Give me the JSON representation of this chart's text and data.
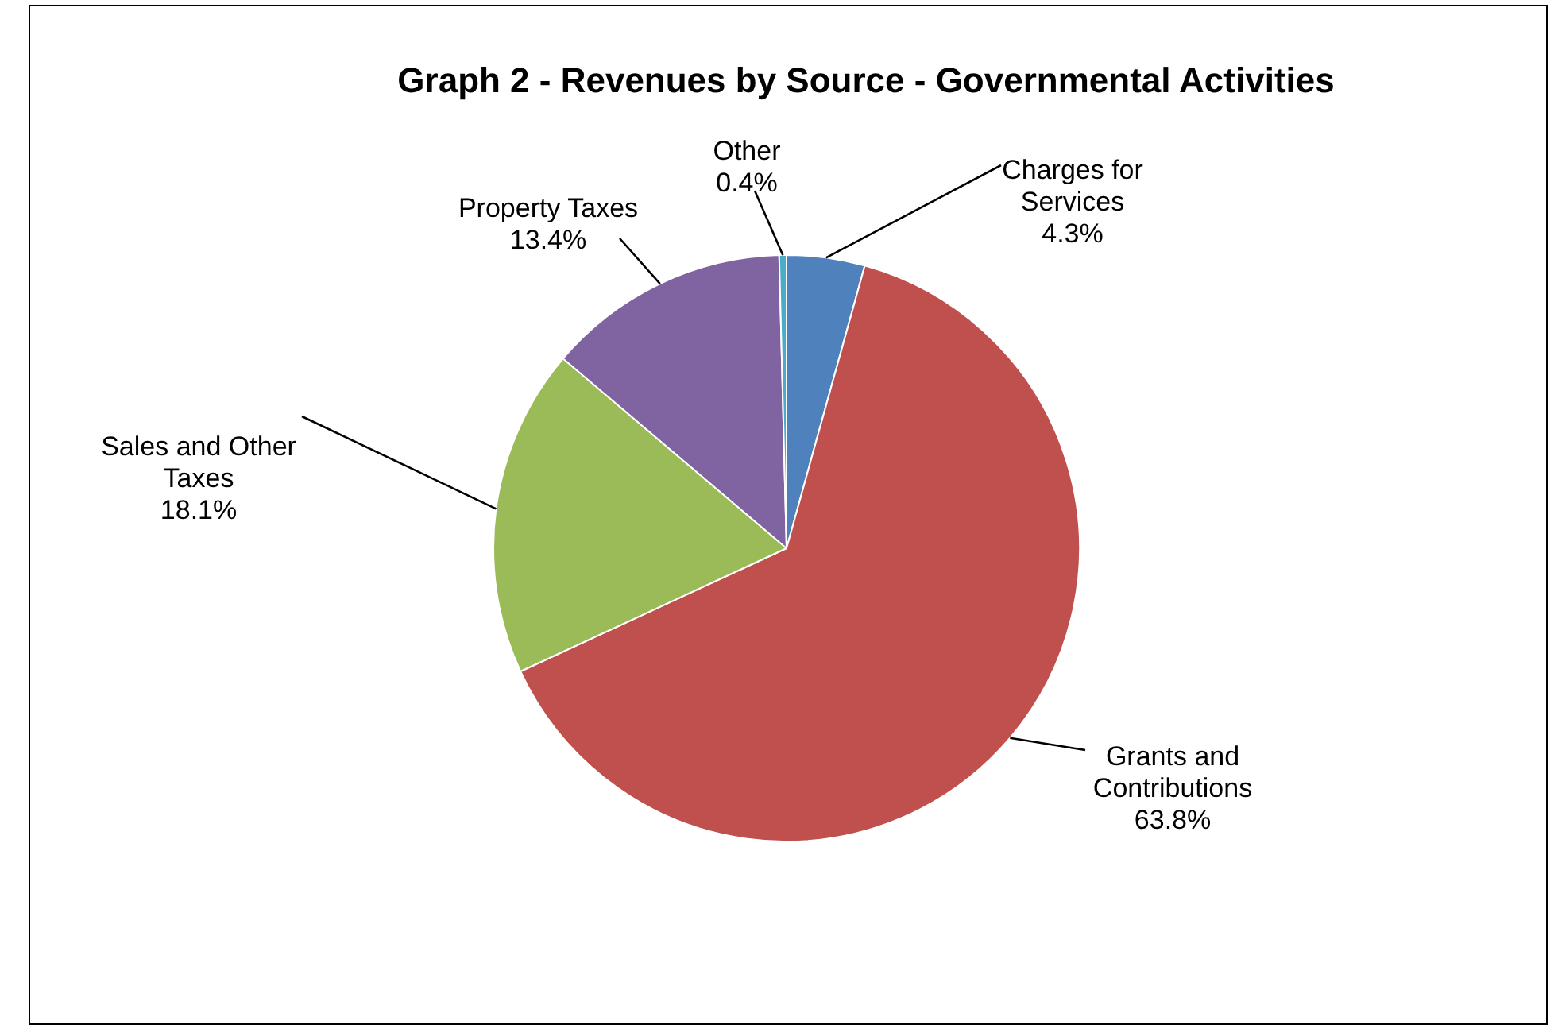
{
  "chart_data": {
    "type": "pie",
    "title": "Graph 2 - Revenues by Source - Governmental Activities",
    "categories": [
      "Charges for Services",
      "Grants and Contributions",
      "Sales and Other Taxes",
      "Property Taxes",
      "Other"
    ],
    "values": [
      4.3,
      63.8,
      18.1,
      13.4,
      0.4
    ],
    "value_labels": [
      "4.3%",
      "63.8%",
      "18.1%",
      "13.4%",
      "0.4%"
    ],
    "colors": [
      "#4f81bd",
      "#c0504d",
      "#9bbb59",
      "#8064a2",
      "#4bacc6"
    ],
    "legend": false
  }
}
